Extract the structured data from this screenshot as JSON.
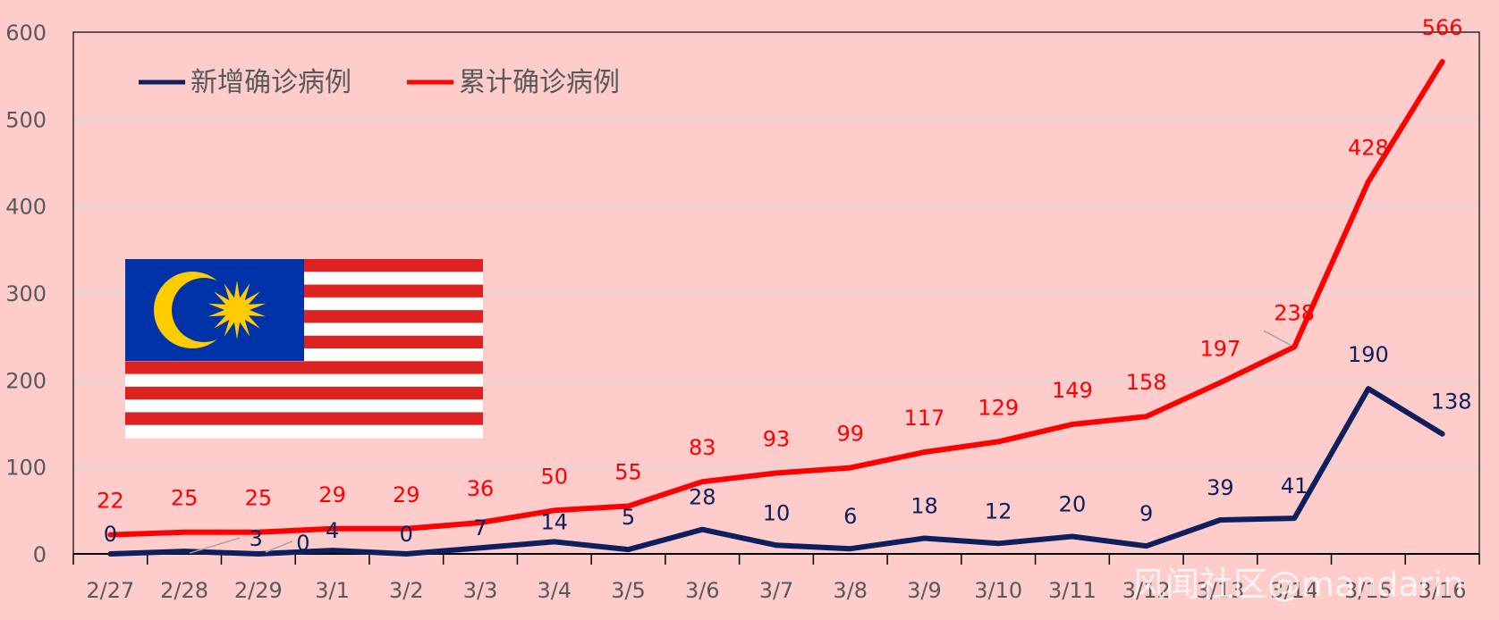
{
  "chart_data": {
    "type": "line",
    "categories": [
      "2/27",
      "2/28",
      "2/29",
      "3/1",
      "3/2",
      "3/3",
      "3/4",
      "3/5",
      "3/6",
      "3/7",
      "3/8",
      "3/9",
      "3/10",
      "3/11",
      "3/12",
      "3/13",
      "3/14",
      "3/15",
      "3/16"
    ],
    "series": [
      {
        "name": "新增确诊病例",
        "color": "#0d1f5c",
        "values": [
          0,
          3,
          0,
          4,
          0,
          7,
          14,
          5,
          28,
          10,
          6,
          18,
          12,
          20,
          9,
          39,
          41,
          190,
          138
        ]
      },
      {
        "name": "累计确诊病例",
        "color": "#ff0000",
        "values": [
          22,
          25,
          25,
          29,
          29,
          36,
          50,
          55,
          83,
          93,
          99,
          117,
          129,
          149,
          158,
          197,
          238,
          428,
          566
        ]
      }
    ],
    "yticks": [
      0,
      100,
      200,
      300,
      400,
      500,
      600
    ],
    "ylim": [
      0,
      600
    ],
    "grid": true,
    "legend_position": "top-left",
    "flag_icon": "malaysia-flag",
    "watermark": "风闻社区@mandarin"
  }
}
